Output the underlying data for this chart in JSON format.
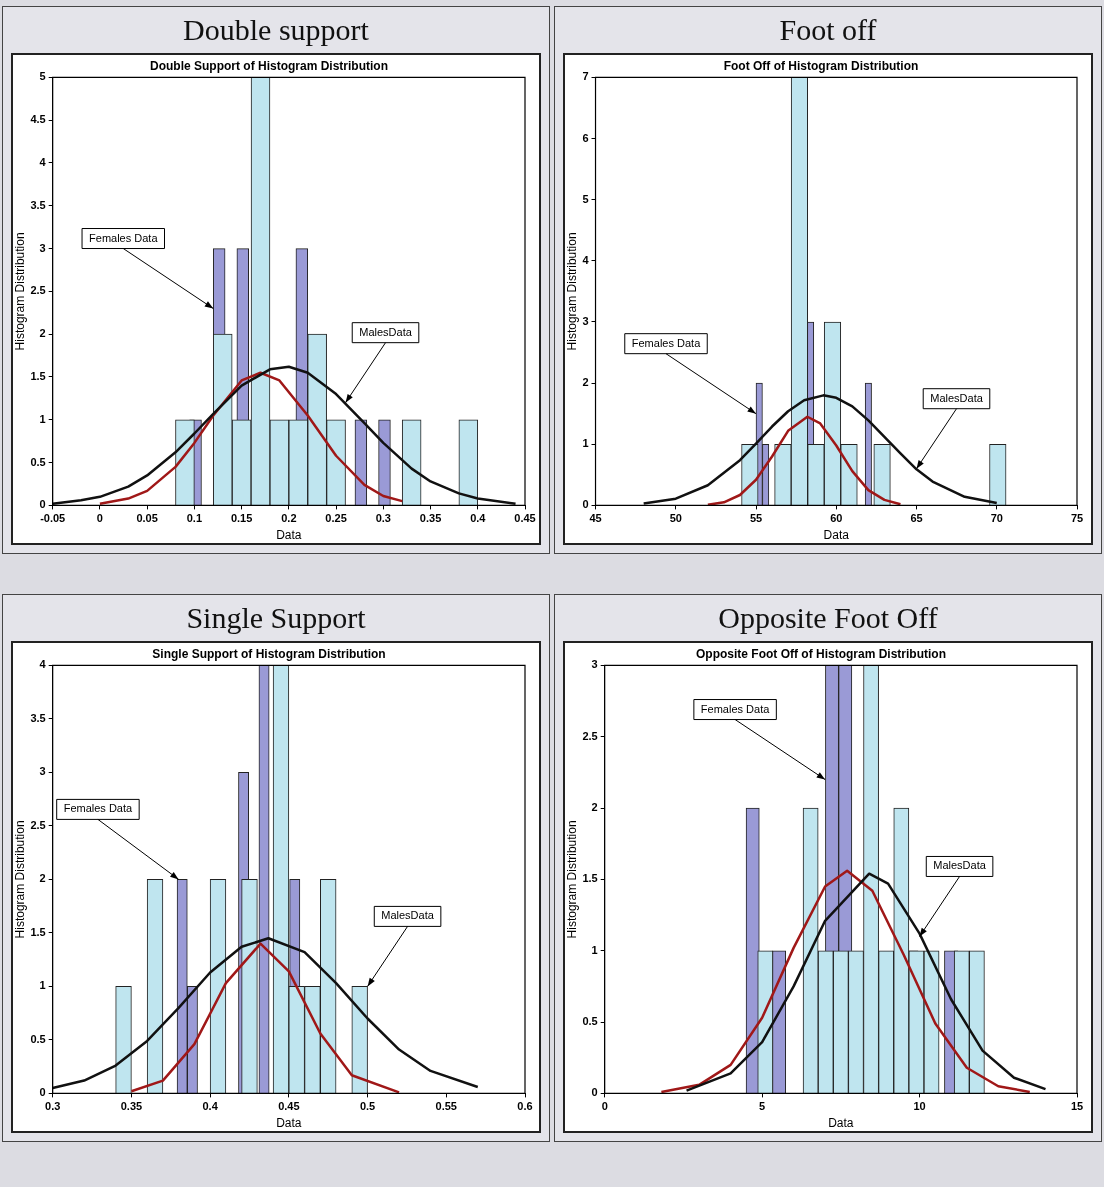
{
  "chart_data": [
    {
      "type": "histogram",
      "title": "Double support",
      "subtitle": "Double Support of Histogram Distribution",
      "xlabel": "Data",
      "ylabel": "Histogram Distribution",
      "xlim": [
        -0.05,
        0.45
      ],
      "xticks": [
        -0.05,
        0,
        0.05,
        0.1,
        0.15,
        0.2,
        0.25,
        0.3,
        0.35,
        0.4,
        0.45
      ],
      "ylim": [
        0,
        5
      ],
      "yticks": [
        0,
        0.5,
        1,
        1.5,
        2,
        2.5,
        3,
        3.5,
        4,
        4.5,
        5
      ],
      "series": [
        {
          "color": "#9a9ad6",
          "bins": [
            0.095,
            0.1075,
            0.12,
            0.1325,
            0.145,
            0.1575,
            0.17,
            0.1825,
            0.195,
            0.2075,
            0.22,
            0.2325,
            0.245,
            0.2575,
            0.27,
            0.2825,
            0.295,
            0.3075,
            0.32
          ],
          "values": [
            1,
            0,
            3,
            null,
            3,
            null,
            null,
            null,
            null,
            3,
            null,
            null,
            null,
            0,
            1,
            0,
            1,
            0
          ]
        },
        {
          "color": "#bfe5ef",
          "bins": [
            0.08,
            0.1,
            0.12,
            0.14,
            0.16,
            0.18,
            0.2,
            0.22,
            0.24,
            0.26,
            0.28,
            0.3,
            0.32,
            0.34,
            0.36,
            0.38,
            0.4
          ],
          "values": [
            1,
            0,
            2,
            1,
            5,
            1,
            1,
            2,
            1,
            0,
            0,
            0,
            1,
            0,
            0,
            1
          ]
        },
        {
          "type": "line",
          "color": "#a01818",
          "x": [
            0,
            0.03,
            0.05,
            0.08,
            0.1,
            0.12,
            0.15,
            0.17,
            0.19,
            0.22,
            0.25,
            0.28,
            0.3,
            0.32
          ],
          "values": [
            0.02,
            0.08,
            0.17,
            0.45,
            0.73,
            1.05,
            1.46,
            1.55,
            1.46,
            1.05,
            0.58,
            0.24,
            0.11,
            0.05
          ]
        },
        {
          "type": "line",
          "color": "#111111",
          "x": [
            -0.05,
            -0.02,
            0,
            0.03,
            0.05,
            0.08,
            0.1,
            0.12,
            0.15,
            0.18,
            0.2,
            0.22,
            0.25,
            0.28,
            0.3,
            0.33,
            0.35,
            0.38,
            0.4,
            0.44
          ],
          "values": [
            0.02,
            0.06,
            0.1,
            0.22,
            0.35,
            0.62,
            0.84,
            1.07,
            1.4,
            1.59,
            1.62,
            1.55,
            1.3,
            0.96,
            0.73,
            0.43,
            0.28,
            0.14,
            0.08,
            0.02
          ]
        }
      ],
      "annotations": [
        {
          "text": "Females Data",
          "x": 0.12,
          "y": 2.3
        },
        {
          "text": "MalesData",
          "x": 0.26,
          "y": 1.2
        }
      ]
    },
    {
      "type": "histogram",
      "title": "Foot off",
      "subtitle": "Foot Off of Histogram Distribution",
      "xlabel": "Data",
      "ylabel": "Histogram Distribution",
      "xlim": [
        45,
        75
      ],
      "xticks": [
        45,
        50,
        55,
        60,
        65,
        70,
        75
      ],
      "ylim": [
        0,
        7
      ],
      "yticks": [
        0,
        1,
        2,
        3,
        4,
        5,
        6,
        7
      ],
      "series": [
        {
          "color": "#9a9ad6",
          "bins": [
            55,
            55.4,
            55.8,
            56.2,
            56.6,
            57,
            57.4,
            57.8,
            58.2,
            58.6,
            59,
            59.4,
            59.8,
            60.2,
            60.6,
            61,
            61.4,
            61.8,
            62.2
          ],
          "values": [
            2,
            1,
            0,
            null,
            null,
            null,
            null,
            null,
            3,
            null,
            null,
            null,
            null,
            null,
            null,
            null,
            0,
            2
          ]
        },
        {
          "color": "#bfe5ef",
          "bins": [
            54.1,
            55.13,
            56.16,
            57.19,
            58.22,
            59.25,
            60.28,
            61.31,
            62.34,
            63.37,
            64.4,
            65.43,
            66.46,
            67.49,
            68.52,
            69.55,
            70.58
          ],
          "values": [
            1,
            0,
            1,
            7,
            1,
            3,
            1,
            0,
            1,
            0,
            0,
            0,
            0,
            0,
            0,
            1
          ]
        },
        {
          "type": "line",
          "color": "#a01818",
          "x": [
            52,
            53,
            54,
            55,
            56,
            57,
            58.2,
            59,
            60,
            61,
            62,
            63,
            64
          ],
          "values": [
            0.01,
            0.05,
            0.17,
            0.42,
            0.8,
            1.22,
            1.45,
            1.34,
            0.98,
            0.56,
            0.25,
            0.09,
            0.02
          ]
        },
        {
          "type": "line",
          "color": "#111111",
          "x": [
            48,
            50,
            52,
            54,
            55,
            56,
            57,
            58,
            59.2,
            60,
            61,
            62,
            63,
            64,
            65,
            66,
            68,
            70
          ],
          "values": [
            0.03,
            0.11,
            0.33,
            0.74,
            1.01,
            1.29,
            1.54,
            1.72,
            1.8,
            1.76,
            1.62,
            1.39,
            1.12,
            0.85,
            0.59,
            0.39,
            0.14,
            0.04
          ]
        }
      ],
      "annotations": [
        {
          "text": "Females Data",
          "x": 55,
          "y": 1.5
        },
        {
          "text": "MalesData",
          "x": 65,
          "y": 0.6
        }
      ]
    },
    {
      "type": "histogram",
      "title": "Single Support",
      "subtitle": "Single Support of Histogram Distribution",
      "xlabel": "Data",
      "ylabel": "Histogram Distribution",
      "xlim": [
        0.3,
        0.6
      ],
      "xticks": [
        0.3,
        0.35,
        0.4,
        0.45,
        0.5,
        0.55,
        0.6
      ],
      "ylim": [
        0,
        4
      ],
      "yticks": [
        0,
        0.5,
        1,
        1.5,
        2,
        2.5,
        3,
        3.5,
        4
      ],
      "series": [
        {
          "color": "#9a9ad6",
          "bins": [
            0.379,
            0.3855,
            0.392,
            0.3985,
            0.405,
            0.4115,
            0.418,
            0.4245,
            0.431,
            0.4375,
            0.444,
            0.4505,
            0.457
          ],
          "values": [
            2,
            1,
            0,
            null,
            null,
            0,
            3,
            null,
            4,
            null,
            null,
            2
          ]
        },
        {
          "color": "#bfe5ef",
          "bins": [
            0.34,
            0.35,
            0.36,
            0.37,
            0.38,
            0.39,
            0.4,
            0.41,
            0.42,
            0.43,
            0.44,
            0.45,
            0.46,
            0.47,
            0.48,
            0.49,
            0.5
          ],
          "values": [
            1,
            0,
            2,
            0,
            0,
            0,
            2,
            0,
            2,
            0,
            4,
            1,
            1,
            2,
            0,
            1
          ]
        },
        {
          "type": "line",
          "color": "#a01818",
          "x": [
            0.35,
            0.37,
            0.39,
            0.41,
            0.432,
            0.45,
            0.47,
            0.49,
            0.52
          ],
          "values": [
            0.02,
            0.12,
            0.46,
            1.03,
            1.4,
            1.14,
            0.56,
            0.17,
            0.01
          ]
        },
        {
          "type": "line",
          "color": "#111111",
          "x": [
            0.3,
            0.32,
            0.34,
            0.36,
            0.38,
            0.4,
            0.42,
            0.437,
            0.46,
            0.48,
            0.5,
            0.52,
            0.54,
            0.57
          ],
          "values": [
            0.05,
            0.12,
            0.26,
            0.49,
            0.8,
            1.13,
            1.37,
            1.45,
            1.32,
            1.03,
            0.7,
            0.41,
            0.21,
            0.06
          ]
        }
      ],
      "annotations": [
        {
          "text": "Females Data",
          "x": 0.38,
          "y": 2
        },
        {
          "text": "MalesData",
          "x": 0.5,
          "y": 1
        }
      ]
    },
    {
      "type": "histogram",
      "title": "Opposite Foot Off",
      "subtitle": "Opposite Foot Off of Histogram Distribution",
      "xlabel": "Data",
      "ylabel": "Histogram Distribution",
      "xlim": [
        0,
        15
      ],
      "xticks": [
        0,
        5,
        10,
        15
      ],
      "ylim": [
        0,
        3
      ],
      "yticks": [
        0,
        0.5,
        1,
        1.5,
        2,
        2.5,
        3
      ],
      "series": [
        {
          "color": "#9a9ad6",
          "bins": [
            4.49,
            4.91,
            5.33,
            5.75,
            6.17,
            6.59,
            7.01,
            7.43,
            7.85,
            8.27,
            8.69,
            9.11,
            9.53,
            9.95,
            10.37,
            10.79,
            11.21
          ],
          "values": [
            2,
            null,
            1,
            0,
            null,
            null,
            3,
            3,
            null,
            null,
            null,
            null,
            1,
            null,
            null,
            1
          ]
        },
        {
          "color": "#bfe5ef",
          "bins": [
            4.86,
            5.34,
            5.82,
            6.3,
            6.78,
            7.26,
            7.74,
            8.22,
            8.7,
            9.18,
            9.66,
            10.14,
            10.62,
            11.1,
            11.58,
            12.06
          ],
          "values": [
            1,
            0,
            0,
            2,
            1,
            1,
            1,
            3,
            1,
            2,
            1,
            1,
            0,
            1,
            1
          ]
        },
        {
          "type": "line",
          "color": "#a01818",
          "x": [
            1.8,
            3,
            4,
            5,
            6,
            7,
            7.7,
            8.5,
            9.5,
            10.5,
            11.5,
            12.5,
            13.5
          ],
          "values": [
            0.01,
            0.06,
            0.2,
            0.53,
            1.02,
            1.45,
            1.56,
            1.42,
            0.97,
            0.49,
            0.18,
            0.05,
            0.01
          ]
        },
        {
          "type": "line",
          "color": "#111111",
          "x": [
            2.6,
            4,
            5,
            6,
            7,
            8.4,
            9,
            10,
            11,
            12,
            13,
            14
          ],
          "values": [
            0.02,
            0.14,
            0.36,
            0.75,
            1.21,
            1.54,
            1.47,
            1.12,
            0.66,
            0.3,
            0.11,
            0.03
          ]
        }
      ],
      "annotations": [
        {
          "text": "Females Data",
          "x": 7,
          "y": 2.2
        },
        {
          "text": "MalesData",
          "x": 10,
          "y": 1.1
        }
      ]
    }
  ]
}
